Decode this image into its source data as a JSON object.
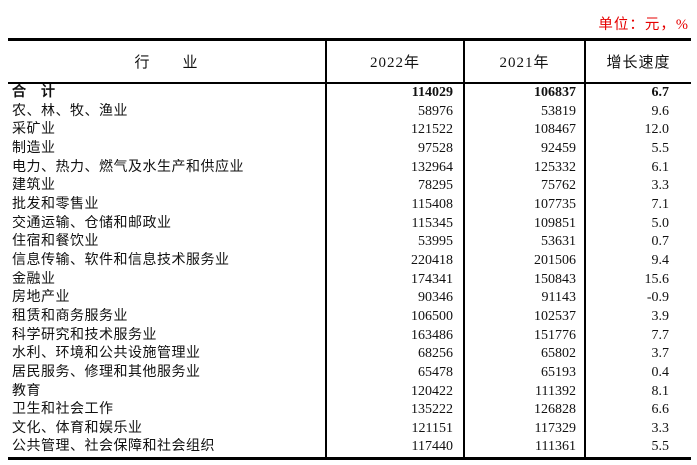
{
  "page": {
    "unit_note": "单位：元，%"
  },
  "table": {
    "columns": [
      "行　　业",
      "2022年",
      "2021年",
      "增长速度"
    ],
    "rows": [
      {
        "industry": "合　计",
        "y2022": "114029",
        "y2021": "106837",
        "growth": "6.7",
        "bold": true
      },
      {
        "industry": "农、林、牧、渔业",
        "y2022": "58976",
        "y2021": "53819",
        "growth": "9.6",
        "bold": false
      },
      {
        "industry": "采矿业",
        "y2022": "121522",
        "y2021": "108467",
        "growth": "12.0",
        "bold": false
      },
      {
        "industry": "制造业",
        "y2022": "97528",
        "y2021": "92459",
        "growth": "5.5",
        "bold": false
      },
      {
        "industry": "电力、热力、燃气及水生产和供应业",
        "y2022": "132964",
        "y2021": "125332",
        "growth": "6.1",
        "bold": false
      },
      {
        "industry": "建筑业",
        "y2022": "78295",
        "y2021": "75762",
        "growth": "3.3",
        "bold": false
      },
      {
        "industry": "批发和零售业",
        "y2022": "115408",
        "y2021": "107735",
        "growth": "7.1",
        "bold": false
      },
      {
        "industry": "交通运输、仓储和邮政业",
        "y2022": "115345",
        "y2021": "109851",
        "growth": "5.0",
        "bold": false
      },
      {
        "industry": "住宿和餐饮业",
        "y2022": "53995",
        "y2021": "53631",
        "growth": "0.7",
        "bold": false
      },
      {
        "industry": "信息传输、软件和信息技术服务业",
        "y2022": "220418",
        "y2021": "201506",
        "growth": "9.4",
        "bold": false
      },
      {
        "industry": "金融业",
        "y2022": "174341",
        "y2021": "150843",
        "growth": "15.6",
        "bold": false
      },
      {
        "industry": "房地产业",
        "y2022": "90346",
        "y2021": "91143",
        "growth": "-0.9",
        "bold": false
      },
      {
        "industry": "租赁和商务服务业",
        "y2022": "106500",
        "y2021": "102537",
        "growth": "3.9",
        "bold": false
      },
      {
        "industry": "科学研究和技术服务业",
        "y2022": "163486",
        "y2021": "151776",
        "growth": "7.7",
        "bold": false
      },
      {
        "industry": "水利、环境和公共设施管理业",
        "y2022": "68256",
        "y2021": "65802",
        "growth": "3.7",
        "bold": false
      },
      {
        "industry": "居民服务、修理和其他服务业",
        "y2022": "65478",
        "y2021": "65193",
        "growth": "0.4",
        "bold": false
      },
      {
        "industry": "教育",
        "y2022": "120422",
        "y2021": "111392",
        "growth": "8.1",
        "bold": false
      },
      {
        "industry": "卫生和社会工作",
        "y2022": "135222",
        "y2021": "126828",
        "growth": "6.6",
        "bold": false
      },
      {
        "industry": "文化、体育和娱乐业",
        "y2022": "121151",
        "y2021": "117329",
        "growth": "3.3",
        "bold": false
      },
      {
        "industry": "公共管理、社会保障和社会组织",
        "y2022": "117440",
        "y2021": "111361",
        "growth": "5.5",
        "bold": false
      }
    ]
  },
  "colors": {
    "unit_note_red": "#e60000",
    "border_black": "#000000",
    "text": "#111111"
  }
}
